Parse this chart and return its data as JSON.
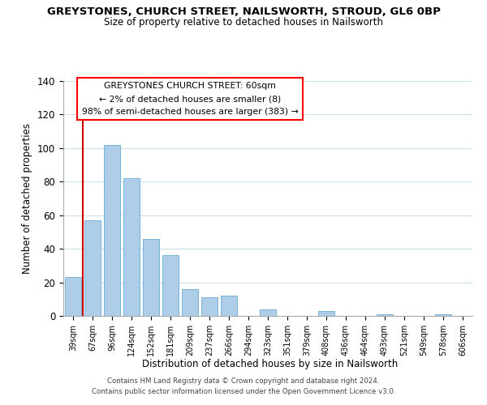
{
  "title": "GREYSTONES, CHURCH STREET, NAILSWORTH, STROUD, GL6 0BP",
  "subtitle": "Size of property relative to detached houses in Nailsworth",
  "xlabel": "Distribution of detached houses by size in Nailsworth",
  "ylabel": "Number of detached properties",
  "categories": [
    "39sqm",
    "67sqm",
    "96sqm",
    "124sqm",
    "152sqm",
    "181sqm",
    "209sqm",
    "237sqm",
    "266sqm",
    "294sqm",
    "323sqm",
    "351sqm",
    "379sqm",
    "408sqm",
    "436sqm",
    "464sqm",
    "493sqm",
    "521sqm",
    "549sqm",
    "578sqm",
    "606sqm"
  ],
  "values": [
    23,
    57,
    102,
    82,
    46,
    36,
    16,
    11,
    12,
    0,
    4,
    0,
    0,
    3,
    0,
    0,
    1,
    0,
    0,
    1,
    0
  ],
  "bar_color": "#aecde8",
  "bar_edge_color": "#6aaad4",
  "highlight_color": "#cc0000",
  "annotation_title": "GREYSTONES CHURCH STREET: 60sqm",
  "annotation_line1": "← 2% of detached houses are smaller (8)",
  "annotation_line2": "98% of semi-detached houses are larger (383) →",
  "ylim": [
    0,
    140
  ],
  "yticks": [
    0,
    20,
    40,
    60,
    80,
    100,
    120,
    140
  ],
  "footer_line1": "Contains HM Land Registry data © Crown copyright and database right 2024.",
  "footer_line2": "Contains public sector information licensed under the Open Government Licence v3.0.",
  "background_color": "#ffffff",
  "grid_color": "#ccdff0"
}
